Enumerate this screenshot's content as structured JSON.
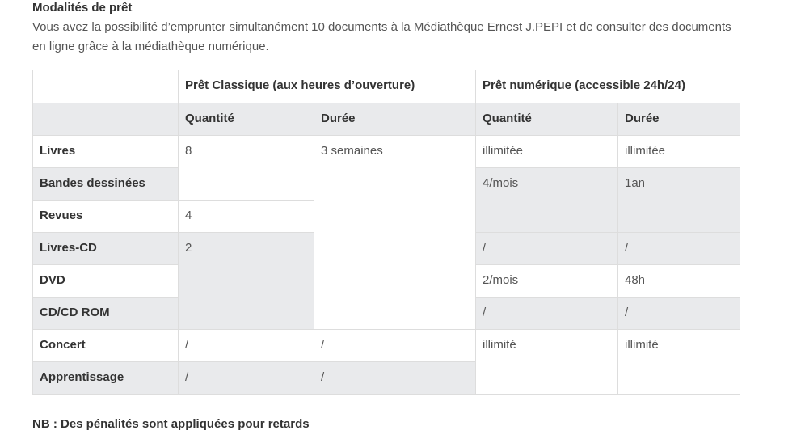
{
  "title": "Modalités de prêt",
  "intro": "Vous avez la possibilité d’emprunter simultanément 10 documents à la Médiathèque Ernest J.PEPI et de consulter des documents en ligne grâce à la médiathèque numérique.",
  "table": {
    "group_classic": "Prêt Classique (aux heures d’ouverture)",
    "group_digital": "Prêt numérique (accessible 24h/24)",
    "qty": "Quantité",
    "dur": "Durée",
    "rows": [
      "Livres",
      "Bandes dessinées",
      "Revues",
      "Livres-CD",
      "DVD",
      "CD/CD ROM",
      "Concert",
      "Apprentissage"
    ],
    "classic_qty": [
      "8",
      "4",
      "2",
      "/",
      "/"
    ],
    "classic_dur": [
      "3 semaines",
      "/",
      "/"
    ],
    "digital_qty": [
      "illimitée",
      "4/mois",
      "/",
      "2/mois",
      "/",
      "illimité"
    ],
    "digital_dur": [
      "illimitée",
      "1an",
      "/",
      "48h",
      "/",
      "illimité"
    ]
  },
  "nb": "NB : Des pénalités sont appliquées pour retards"
}
